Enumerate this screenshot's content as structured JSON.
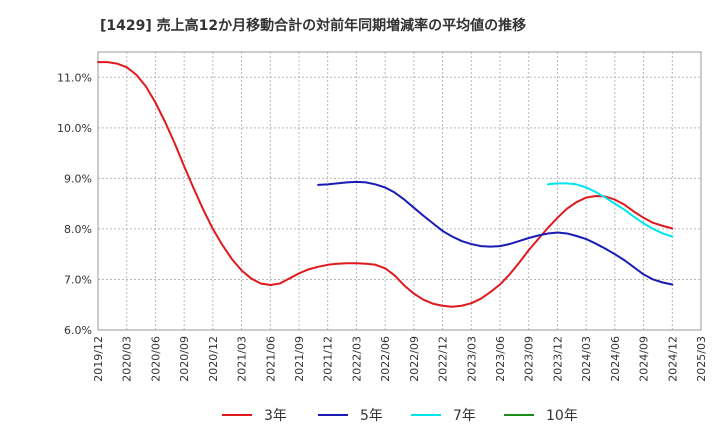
{
  "chart_data": {
    "type": "line",
    "title": "[1429]  売上高12か月移動合計の対前年同期増減率の平均値の推移",
    "xlabel": "",
    "ylabel": "",
    "ylim": [
      6.0,
      11.5
    ],
    "yticks": [
      6.0,
      7.0,
      8.0,
      9.0,
      10.0,
      11.0
    ],
    "ytick_labels": [
      "6.0%",
      "7.0%",
      "8.0%",
      "9.0%",
      "10.0%",
      "11.0%"
    ],
    "xticks": [
      "2019/12",
      "2020/03",
      "2020/06",
      "2020/09",
      "2020/12",
      "2021/03",
      "2021/06",
      "2021/09",
      "2021/12",
      "2022/03",
      "2022/06",
      "2022/09",
      "2022/12",
      "2023/03",
      "2023/06",
      "2023/09",
      "2023/12",
      "2024/03",
      "2024/06",
      "2024/09",
      "2024/12",
      "2025/03"
    ],
    "grid": true,
    "legend_position": "bottom",
    "series": [
      {
        "name": "3年",
        "color": "#e0191e",
        "points": [
          [
            "2019/12",
            11.3
          ],
          [
            "2020/01",
            11.3
          ],
          [
            "2020/02",
            11.27
          ],
          [
            "2020/03",
            11.2
          ],
          [
            "2020/04",
            11.05
          ],
          [
            "2020/05",
            10.82
          ],
          [
            "2020/06",
            10.5
          ],
          [
            "2020/07",
            10.12
          ],
          [
            "2020/08",
            9.7
          ],
          [
            "2020/09",
            9.24
          ],
          [
            "2020/10",
            8.8
          ],
          [
            "2020/11",
            8.38
          ],
          [
            "2020/12",
            8.0
          ],
          [
            "2021/01",
            7.68
          ],
          [
            "2021/02",
            7.4
          ],
          [
            "2021/03",
            7.18
          ],
          [
            "2021/04",
            7.02
          ],
          [
            "2021/05",
            6.92
          ],
          [
            "2021/06",
            6.89
          ],
          [
            "2021/07",
            6.92
          ],
          [
            "2021/08",
            7.02
          ],
          [
            "2021/09",
            7.12
          ],
          [
            "2021/10",
            7.2
          ],
          [
            "2021/11",
            7.25
          ],
          [
            "2021/12",
            7.29
          ],
          [
            "2022/01",
            7.31
          ],
          [
            "2022/02",
            7.32
          ],
          [
            "2022/03",
            7.32
          ],
          [
            "2022/04",
            7.31
          ],
          [
            "2022/05",
            7.29
          ],
          [
            "2022/06",
            7.22
          ],
          [
            "2022/07",
            7.08
          ],
          [
            "2022/08",
            6.88
          ],
          [
            "2022/09",
            6.72
          ],
          [
            "2022/10",
            6.6
          ],
          [
            "2022/11",
            6.52
          ],
          [
            "2022/12",
            6.48
          ],
          [
            "2023/01",
            6.46
          ],
          [
            "2023/02",
            6.48
          ],
          [
            "2023/03",
            6.53
          ],
          [
            "2023/04",
            6.62
          ],
          [
            "2023/05",
            6.75
          ],
          [
            "2023/06",
            6.9
          ],
          [
            "2023/07",
            7.1
          ],
          [
            "2023/08",
            7.33
          ],
          [
            "2023/09",
            7.58
          ],
          [
            "2023/10",
            7.8
          ],
          [
            "2023/11",
            8.02
          ],
          [
            "2023/12",
            8.22
          ],
          [
            "2024/01",
            8.4
          ],
          [
            "2024/02",
            8.53
          ],
          [
            "2024/03",
            8.62
          ],
          [
            "2024/04",
            8.65
          ],
          [
            "2024/05",
            8.64
          ],
          [
            "2024/06",
            8.58
          ],
          [
            "2024/07",
            8.48
          ],
          [
            "2024/08",
            8.34
          ],
          [
            "2024/09",
            8.22
          ],
          [
            "2024/10",
            8.12
          ],
          [
            "2024/11",
            8.06
          ],
          [
            "2024/12",
            8.01
          ]
        ]
      },
      {
        "name": "5年",
        "color": "#1a1ab4",
        "points": [
          [
            "2021/11",
            8.87
          ],
          [
            "2021/12",
            8.88
          ],
          [
            "2022/01",
            8.9
          ],
          [
            "2022/02",
            8.92
          ],
          [
            "2022/03",
            8.93
          ],
          [
            "2022/04",
            8.92
          ],
          [
            "2022/05",
            8.88
          ],
          [
            "2022/06",
            8.82
          ],
          [
            "2022/07",
            8.72
          ],
          [
            "2022/08",
            8.58
          ],
          [
            "2022/09",
            8.42
          ],
          [
            "2022/10",
            8.26
          ],
          [
            "2022/11",
            8.11
          ],
          [
            "2022/12",
            7.96
          ],
          [
            "2023/01",
            7.85
          ],
          [
            "2023/02",
            7.76
          ],
          [
            "2023/03",
            7.7
          ],
          [
            "2023/04",
            7.66
          ],
          [
            "2023/05",
            7.65
          ],
          [
            "2023/06",
            7.66
          ],
          [
            "2023/07",
            7.7
          ],
          [
            "2023/08",
            7.76
          ],
          [
            "2023/09",
            7.82
          ],
          [
            "2023/10",
            7.87
          ],
          [
            "2023/11",
            7.91
          ],
          [
            "2023/12",
            7.93
          ],
          [
            "2024/01",
            7.91
          ],
          [
            "2024/02",
            7.86
          ],
          [
            "2024/03",
            7.8
          ],
          [
            "2024/04",
            7.71
          ],
          [
            "2024/05",
            7.61
          ],
          [
            "2024/06",
            7.5
          ],
          [
            "2024/07",
            7.38
          ],
          [
            "2024/08",
            7.24
          ],
          [
            "2024/09",
            7.1
          ],
          [
            "2024/10",
            7.0
          ],
          [
            "2024/11",
            6.94
          ],
          [
            "2024/12",
            6.9
          ]
        ]
      },
      {
        "name": "7年",
        "color": "#00e5ee",
        "points": [
          [
            "2023/11",
            8.88
          ],
          [
            "2023/12",
            8.9
          ],
          [
            "2024/01",
            8.9
          ],
          [
            "2024/02",
            8.88
          ],
          [
            "2024/03",
            8.82
          ],
          [
            "2024/04",
            8.73
          ],
          [
            "2024/05",
            8.62
          ],
          [
            "2024/06",
            8.5
          ],
          [
            "2024/07",
            8.38
          ],
          [
            "2024/08",
            8.24
          ],
          [
            "2024/09",
            8.11
          ],
          [
            "2024/10",
            8.0
          ],
          [
            "2024/11",
            7.91
          ],
          [
            "2024/12",
            7.85
          ]
        ]
      },
      {
        "name": "10年",
        "color": "#1a8c1a",
        "points": []
      }
    ]
  }
}
